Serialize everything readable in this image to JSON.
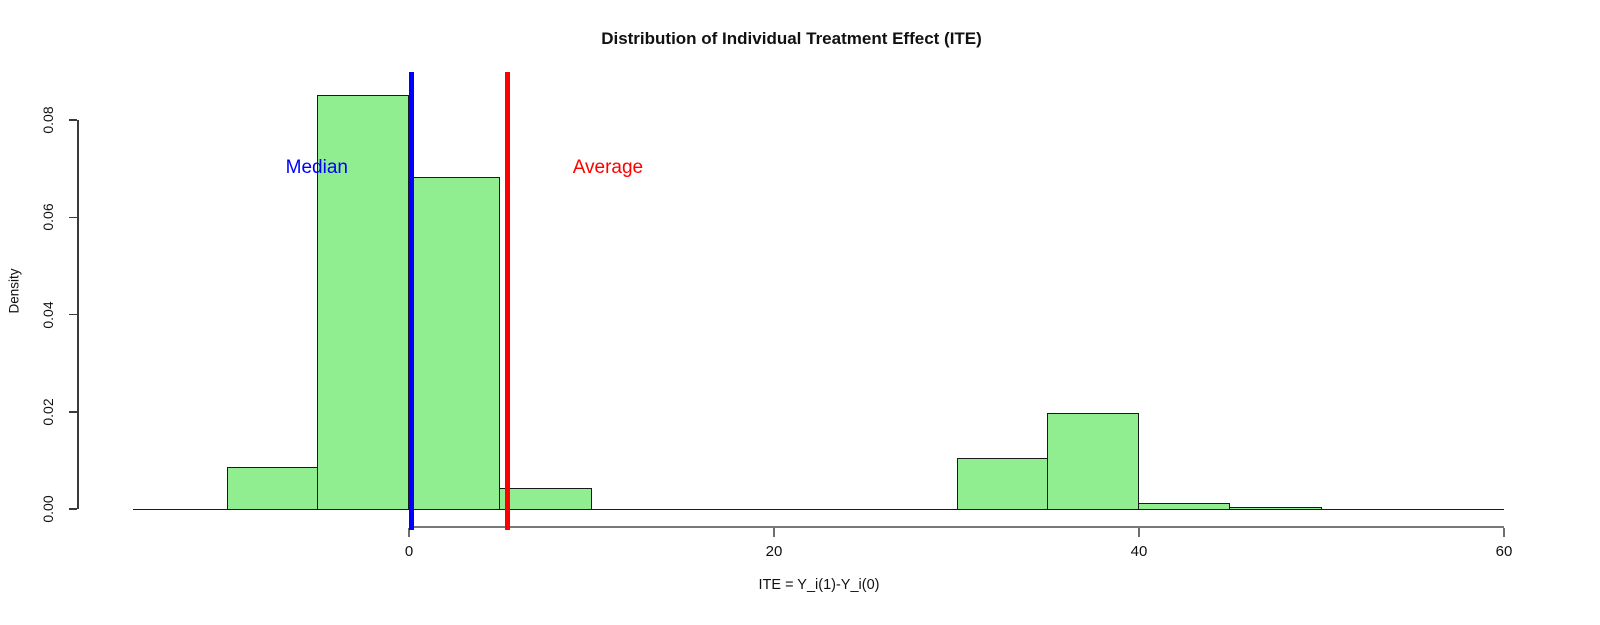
{
  "background": "#FFFFFF",
  "chart_data": {
    "type": "histogram",
    "title": "Distribution of Individual Treatment Effect (ITE)",
    "xlabel": "ITE = Y_i(1)-Y_i(0)",
    "ylabel": "Density",
    "xlim": [
      -15.1,
      60.0
    ],
    "ylim": [
      0,
      0.088
    ],
    "grid": false,
    "bar_fill": "#90EE90",
    "bar_border": "#1a1a1a",
    "x_ticks": [
      {
        "value": 0,
        "label": "0"
      },
      {
        "value": 20,
        "label": "20"
      },
      {
        "value": 40,
        "label": "40"
      },
      {
        "value": 60,
        "label": "60"
      }
    ],
    "y_ticks": [
      {
        "value": 0.0,
        "label": "0.00"
      },
      {
        "value": 0.02,
        "label": "0.02"
      },
      {
        "value": 0.04,
        "label": "0.04"
      },
      {
        "value": 0.06,
        "label": "0.06"
      },
      {
        "value": 0.08,
        "label": "0.08"
      }
    ],
    "bins": [
      {
        "x0": -10,
        "x1": -5,
        "density": 0.0086
      },
      {
        "x0": -5,
        "x1": 0,
        "density": 0.0851
      },
      {
        "x0": 0,
        "x1": 5,
        "density": 0.0683
      },
      {
        "x0": 5,
        "x1": 10,
        "density": 0.0043
      },
      {
        "x0": 30,
        "x1": 35,
        "density": 0.0105
      },
      {
        "x0": 35,
        "x1": 40,
        "density": 0.0197
      },
      {
        "x0": 40,
        "x1": 45,
        "density": 0.0012
      },
      {
        "x0": 45,
        "x1": 50,
        "density": 0.0005
      }
    ],
    "baseline_extent": [
      -15.1,
      60.0
    ],
    "vlines": [
      {
        "name": "median",
        "value": 0.15,
        "color": "#0000FF",
        "label": "Median",
        "label_x": -5.05,
        "label_y": 0.0701
      },
      {
        "name": "average",
        "value": 5.4,
        "color": "#FF0000",
        "label": "Average",
        "label_x": 10.9,
        "label_y": 0.0701
      }
    ]
  }
}
